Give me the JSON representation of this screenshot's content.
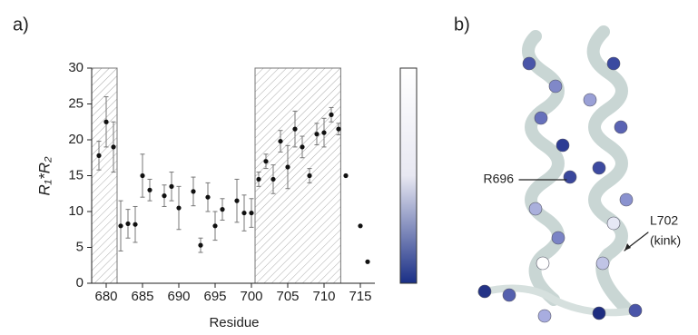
{
  "chart_data": {
    "type": "scatter",
    "panel_labels": [
      "a)",
      "b)"
    ],
    "x_label": "Residue",
    "y_label": "R₁*R₂",
    "x": [
      679,
      680,
      681,
      682,
      683,
      684,
      685,
      686,
      688,
      689,
      690,
      692,
      693,
      694,
      695,
      696,
      698,
      699,
      700,
      701,
      702,
      703,
      704,
      705,
      706,
      707,
      708,
      709,
      710,
      711,
      712,
      713,
      715,
      716
    ],
    "values": [
      17.8,
      22.5,
      19,
      8,
      8.3,
      8.2,
      15,
      13,
      12.2,
      13.5,
      10.5,
      12.8,
      5.3,
      12,
      8,
      10.3,
      11.5,
      9.8,
      9.8,
      14.5,
      17,
      14.5,
      19.8,
      16.2,
      21.5,
      19,
      15,
      20.8,
      21,
      23.5,
      21.5,
      15,
      8,
      3
    ],
    "errors": [
      2,
      3.5,
      3.5,
      3.5,
      2,
      2.5,
      3,
      1.5,
      1.5,
      2,
      3,
      2,
      1,
      2,
      2,
      1.5,
      3,
      2.5,
      2,
      1,
      1,
      2,
      1.5,
      3,
      2.5,
      1.5,
      1,
      1.5,
      2,
      1,
      0.8,
      null,
      null,
      null
    ],
    "color": "#111111",
    "shaded_ranges": [
      [
        678,
        681.5
      ],
      [
        700.5,
        712.3
      ]
    ],
    "xlim": [
      678,
      717
    ],
    "ylim": [
      0,
      30
    ],
    "xticks": [
      680,
      685,
      690,
      695,
      700,
      705,
      710,
      715
    ],
    "yticks": [
      0,
      5,
      10,
      15,
      20,
      25,
      30
    ],
    "colorbar_colors": [
      "#ffffff",
      "#e8e8f2",
      "#1a2f86"
    ],
    "structure_labels": [
      "R696",
      "L702",
      "(kink)"
    ]
  }
}
